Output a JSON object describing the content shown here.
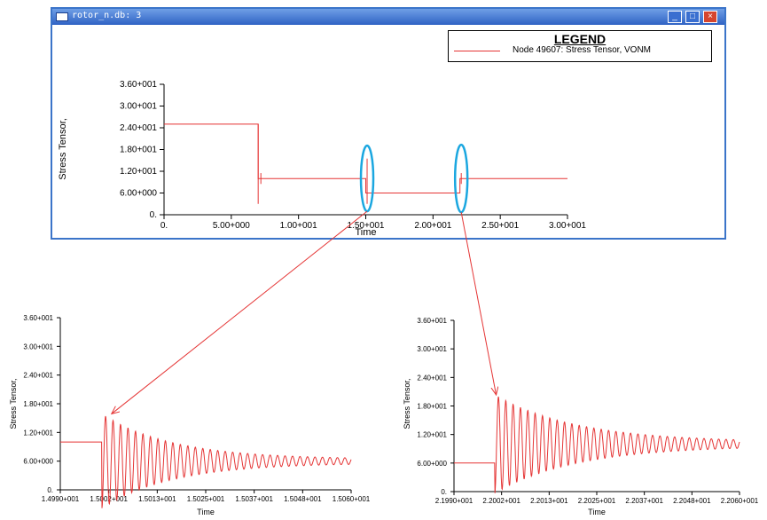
{
  "window": {
    "title": "rotor_n.db: 3",
    "legend_title": "LEGEND",
    "legend_entry": "Node 49607: Stress Tensor, VONM"
  },
  "colors": {
    "line": "#e53535",
    "highlight": "#1ba7e0",
    "titlebar": "#2f62c4"
  },
  "chart_data": [
    {
      "type": "line",
      "xlabel": "Time",
      "ylabel": "Stress Tensor,",
      "xticks": [
        "0.",
        "5.00+000",
        "1.00+001",
        "1.50+001",
        "2.00+001",
        "2.50+001",
        "3.00+001"
      ],
      "yticks": [
        "0.",
        "6.00+000",
        "1.20+001",
        "1.80+001",
        "2.40+001",
        "3.00+001",
        "3.60+001"
      ],
      "xlim": [
        0,
        30
      ],
      "ylim": [
        0,
        36
      ],
      "series": [
        {
          "name": "Node 49607: Stress Tensor, VONM",
          "x": [
            0,
            7,
            7,
            15,
            15,
            22,
            22,
            30
          ],
          "y": [
            25,
            25,
            10,
            10,
            6,
            6,
            10,
            10
          ]
        }
      ]
    },
    {
      "type": "line",
      "xlabel": "Time",
      "ylabel": "Stress Tensor,",
      "xticks": [
        "1.4990+001",
        "1.5002+001",
        "1.5013+001",
        "1.5025+001",
        "1.5037+001",
        "1.5048+001",
        "1.5060+001"
      ],
      "yticks": [
        "0.",
        "6.00+000",
        "1.20+001",
        "1.80+001",
        "2.40+001",
        "3.00+001",
        "3.60+001"
      ],
      "xlim": [
        14.99,
        15.06
      ],
      "ylim": [
        0,
        36
      ],
      "series": [
        {
          "step_time": 15.0,
          "before": 10,
          "after": 6,
          "peak": 15.5,
          "period": 0.0018,
          "decay": 0.017
        }
      ]
    },
    {
      "type": "line",
      "xlabel": "Time",
      "ylabel": "Stress Tensor,",
      "xticks": [
        "2.1990+001",
        "2.2002+001",
        "2.2013+001",
        "2.2025+001",
        "2.2037+001",
        "2.2048+001",
        "2.2060+001"
      ],
      "yticks": [
        "0.",
        "6.00+000",
        "1.20+001",
        "1.80+001",
        "2.40+001",
        "3.00+001",
        "3.60+001"
      ],
      "xlim": [
        21.99,
        22.06
      ],
      "ylim": [
        0,
        36
      ],
      "series": [
        {
          "step_time": 22.0,
          "before": 6,
          "after": 10,
          "peak": 20,
          "period": 0.0018,
          "decay": 0.02
        }
      ]
    }
  ]
}
